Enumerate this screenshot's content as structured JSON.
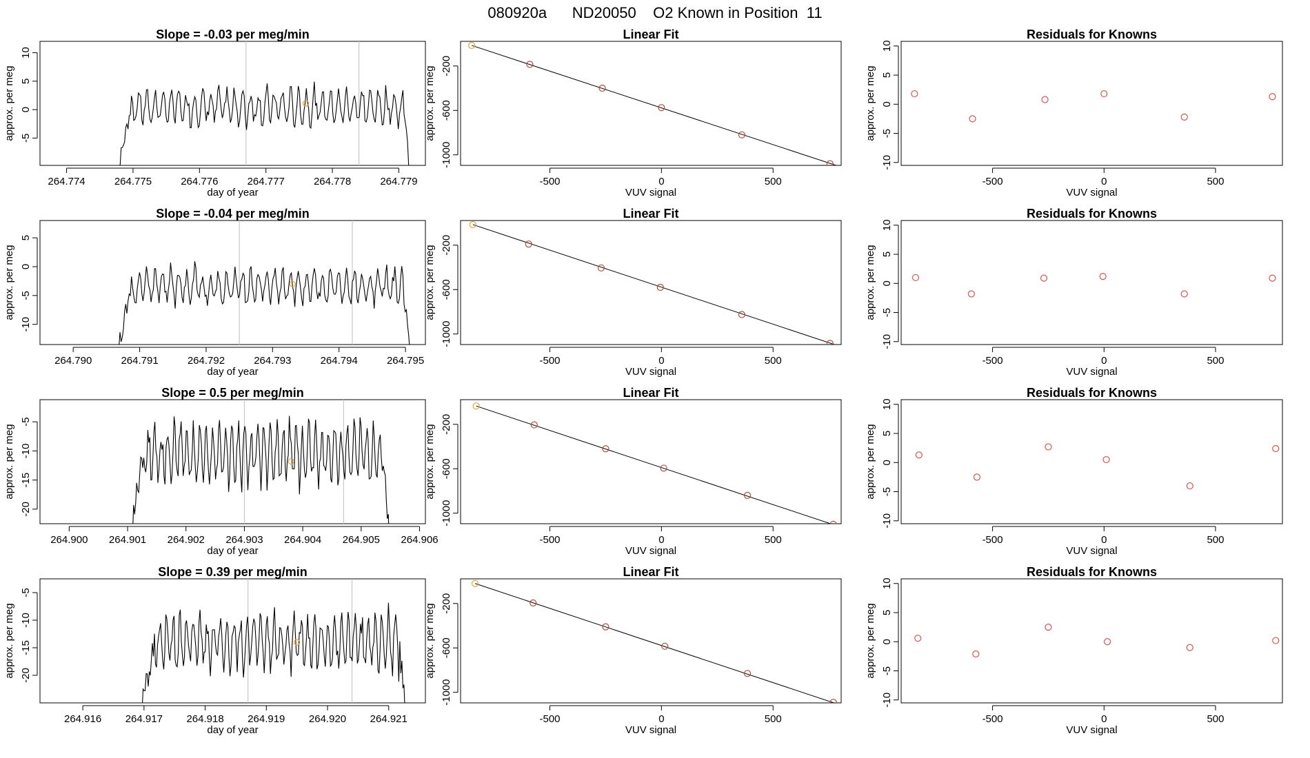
{
  "page_title": "080920a      ND20050    O2 Known in Position  11",
  "colors": {
    "trace": "#000000",
    "known_point": "#e8a33a",
    "residual_point": "#d9534f",
    "fit_point": "#b04a3a",
    "guide_line": "#c8c8c8",
    "frame": "#000000"
  },
  "chart_data": [
    {
      "type": "line",
      "row": 0,
      "col": 0,
      "title": "Slope =  -0.03  per meg/min",
      "xlabel": "day of year",
      "ylabel": "approx. per meg",
      "xlim": [
        264.7736,
        264.7794
      ],
      "ylim": [
        -9.8,
        12
      ],
      "xticks": [
        264.774,
        264.775,
        264.776,
        264.777,
        264.778,
        264.779
      ],
      "xtick_labels": [
        "264.774",
        "264.775",
        "264.776",
        "264.777",
        "264.778",
        "264.779"
      ],
      "yticks": [
        -5,
        0,
        5,
        10
      ],
      "ytick_labels": [
        "-5",
        "0",
        "5",
        "10"
      ],
      "trace_x_range": [
        264.7747,
        264.7792
      ],
      "trace_mean": 0.5,
      "trace_amplitude": 3.2,
      "trace_period": 0.00012,
      "vlines": [
        264.7767,
        264.7784
      ],
      "known_point": {
        "x": 264.7776,
        "y": 1.1
      }
    },
    {
      "type": "line",
      "row": 1,
      "col": 0,
      "title": "Slope =  -0.04  per meg/min",
      "xlabel": "day of year",
      "ylabel": "approx. per meg",
      "xlim": [
        264.7895,
        264.7953
      ],
      "ylim": [
        -13.5,
        8
      ],
      "xticks": [
        264.79,
        264.791,
        264.792,
        264.793,
        264.794,
        264.795
      ],
      "xtick_labels": [
        "264.790",
        "264.791",
        "264.792",
        "264.793",
        "264.794",
        "264.795"
      ],
      "yticks": [
        -10,
        -5,
        0,
        5
      ],
      "ytick_labels": [
        "-10",
        "-5",
        "0",
        "5"
      ],
      "trace_x_range": [
        264.7906,
        264.7951
      ],
      "trace_mean": -3.5,
      "trace_amplitude": 3.0,
      "trace_period": 0.00012,
      "vlines": [
        264.7925,
        264.7942
      ],
      "known_point": {
        "x": 264.7933,
        "y": -3.0
      }
    },
    {
      "type": "line",
      "row": 2,
      "col": 0,
      "title": "Slope =  0.5  per meg/min",
      "xlabel": "day of year",
      "ylabel": "approx. per meg",
      "xlim": [
        264.8995,
        264.9061
      ],
      "ylim": [
        -22.5,
        -1.2
      ],
      "xticks": [
        264.9,
        264.901,
        264.902,
        264.903,
        264.904,
        264.905,
        264.906
      ],
      "xtick_labels": [
        "264.900",
        "264.901",
        "264.902",
        "264.903",
        "264.904",
        "264.905",
        "264.906"
      ],
      "yticks": [
        -20,
        -15,
        -10,
        -5
      ],
      "ytick_labels": [
        "-20",
        "-15",
        "-10",
        "-5"
      ],
      "trace_x_range": [
        264.901,
        264.9055
      ],
      "trace_mean": -10.5,
      "trace_amplitude": 5.0,
      "trace_period": 0.00011,
      "vlines": [
        264.903,
        264.9047
      ],
      "known_point": {
        "x": 264.9038,
        "y": -11.8
      }
    },
    {
      "type": "line",
      "row": 3,
      "col": 0,
      "title": "Slope =  0.39  per meg/min",
      "xlabel": "day of year",
      "ylabel": "approx. per meg",
      "xlim": [
        264.9153,
        264.9216
      ],
      "ylim": [
        -25,
        -2.5
      ],
      "xticks": [
        264.916,
        264.917,
        264.918,
        264.919,
        264.92,
        264.921
      ],
      "xtick_labels": [
        "264.916",
        "264.917",
        "264.918",
        "264.919",
        "264.920",
        "264.921"
      ],
      "yticks": [
        -20,
        -15,
        -10,
        -5
      ],
      "ytick_labels": [
        "-20",
        "-15",
        "-10",
        "-5"
      ],
      "trace_x_range": [
        264.9169,
        264.9213
      ],
      "trace_mean": -14.0,
      "trace_amplitude": 5.0,
      "trace_period": 0.00011,
      "vlines": [
        264.9187,
        264.9204
      ],
      "known_point": {
        "x": 264.9195,
        "y": -14.0
      }
    },
    {
      "type": "scatter",
      "row": 0,
      "col": 1,
      "title": "Linear Fit",
      "xlabel": "VUV signal",
      "ylabel": "approx. per meg",
      "xlim": [
        -900,
        805
      ],
      "ylim": [
        -1095,
        22
      ],
      "xticks": [
        -500,
        0,
        500
      ],
      "xtick_labels": [
        "-500",
        "0",
        "500"
      ],
      "yticks": [
        -200,
        -600,
        -1000
      ],
      "ytick_labels": [
        "-200",
        "-600",
        "-1000"
      ],
      "points_x": [
        -850,
        -590,
        -265,
        0,
        360,
        755
      ],
      "points_y": [
        -15,
        -185,
        -400,
        -575,
        -820,
        -1080
      ],
      "fit_line": {
        "x": [
          -850,
          790
        ],
        "y": [
          -15,
          -1100
        ]
      }
    },
    {
      "type": "scatter",
      "row": 1,
      "col": 1,
      "title": "Linear Fit",
      "xlabel": "VUV signal",
      "ylabel": "approx. per meg",
      "xlim": [
        -900,
        805
      ],
      "ylim": [
        -1095,
        22
      ],
      "xticks": [
        -500,
        0,
        500
      ],
      "xtick_labels": [
        "-500",
        "0",
        "500"
      ],
      "yticks": [
        -200,
        -600,
        -1000
      ],
      "ytick_labels": [
        "-200",
        "-600",
        "-1000"
      ],
      "points_x": [
        -845,
        -595,
        -270,
        -5,
        360,
        755
      ],
      "points_y": [
        -15,
        -190,
        -405,
        -580,
        -825,
        -1085
      ],
      "fit_line": {
        "x": [
          -845,
          790
        ],
        "y": [
          -15,
          -1105
        ]
      }
    },
    {
      "type": "scatter",
      "row": 2,
      "col": 1,
      "title": "Linear Fit",
      "xlabel": "VUV signal",
      "ylabel": "approx. per meg",
      "xlim": [
        -900,
        805
      ],
      "ylim": [
        -1095,
        22
      ],
      "xticks": [
        -500,
        0,
        500
      ],
      "xtick_labels": [
        "-500",
        "0",
        "500"
      ],
      "points_x": [
        -830,
        -570,
        -250,
        10,
        385,
        770
      ],
      "points_y": [
        -35,
        -205,
        -420,
        -595,
        -840,
        -1100
      ],
      "yticks": [
        -200,
        -600,
        -1000
      ],
      "ytick_labels": [
        "-200",
        "-600",
        "-1000"
      ],
      "fit_line": {
        "x": [
          -830,
          780
        ],
        "y": [
          -35,
          -1110
        ]
      }
    },
    {
      "type": "scatter",
      "row": 3,
      "col": 1,
      "title": "Linear Fit",
      "xlabel": "VUV signal",
      "ylabel": "approx. per meg",
      "xlim": [
        -900,
        805
      ],
      "ylim": [
        -1095,
        22
      ],
      "xticks": [
        -500,
        0,
        500
      ],
      "xtick_labels": [
        "-500",
        "0",
        "500"
      ],
      "yticks": [
        -200,
        -600,
        -1000
      ],
      "ytick_labels": [
        "-200",
        "-600",
        "-1000"
      ],
      "points_x": [
        -835,
        -575,
        -250,
        15,
        385,
        770
      ],
      "points_y": [
        -20,
        -195,
        -410,
        -585,
        -830,
        -1090
      ],
      "fit_line": {
        "x": [
          -835,
          780
        ],
        "y": [
          -20,
          -1100
        ]
      }
    },
    {
      "type": "scatter",
      "row": 0,
      "col": 2,
      "title": "Residuals for Knowns",
      "xlabel": "VUV signal",
      "ylabel": "approx. per meg",
      "xlim": [
        -910,
        800
      ],
      "ylim": [
        -10.5,
        10.8
      ],
      "xticks": [
        -500,
        0,
        500
      ],
      "xtick_labels": [
        "-500",
        "0",
        "500"
      ],
      "yticks": [
        -10,
        -5,
        0,
        5,
        10
      ],
      "ytick_labels": [
        "-10",
        "-5",
        "0",
        "5",
        "10"
      ],
      "points_x": [
        -850,
        -590,
        -265,
        0,
        360,
        755
      ],
      "points_y": [
        1.8,
        -2.5,
        0.8,
        1.8,
        -2.2,
        1.3
      ]
    },
    {
      "type": "scatter",
      "row": 1,
      "col": 2,
      "title": "Residuals for Knowns",
      "xlabel": "VUV signal",
      "ylabel": "approx. per meg",
      "xlim": [
        -910,
        800
      ],
      "ylim": [
        -10.5,
        10.8
      ],
      "xticks": [
        -500,
        0,
        500
      ],
      "xtick_labels": [
        "-500",
        "0",
        "500"
      ],
      "yticks": [
        -10,
        -5,
        0,
        5,
        10
      ],
      "ytick_labels": [
        "-10",
        "-5",
        "0",
        "5",
        "10"
      ],
      "points_x": [
        -845,
        -595,
        -270,
        -5,
        360,
        755
      ],
      "points_y": [
        1.0,
        -1.8,
        0.9,
        1.2,
        -1.8,
        0.9
      ]
    },
    {
      "type": "scatter",
      "row": 2,
      "col": 2,
      "title": "Residuals for Knowns",
      "xlabel": "VUV signal",
      "ylabel": "approx. per meg",
      "xlim": [
        -910,
        800
      ],
      "ylim": [
        -10.5,
        10.8
      ],
      "xticks": [
        -500,
        0,
        500
      ],
      "xtick_labels": [
        "-500",
        "0",
        "500"
      ],
      "yticks": [
        -10,
        -5,
        0,
        5,
        10
      ],
      "ytick_labels": [
        "-10",
        "-5",
        "0",
        "5",
        "10"
      ],
      "points_x": [
        -830,
        -570,
        -250,
        10,
        385,
        770
      ],
      "points_y": [
        1.3,
        -2.5,
        2.7,
        0.5,
        -4.0,
        2.4
      ]
    },
    {
      "type": "scatter",
      "row": 3,
      "col": 2,
      "title": "Residuals for Knowns",
      "xlabel": "VUV signal",
      "ylabel": "approx. per meg",
      "xlim": [
        -910,
        800
      ],
      "ylim": [
        -10.5,
        10.8
      ],
      "xticks": [
        -500,
        0,
        500
      ],
      "xtick_labels": [
        "-500",
        "0",
        "500"
      ],
      "yticks": [
        -10,
        -5,
        0,
        5,
        10
      ],
      "ytick_labels": [
        "-10",
        "-5",
        "0",
        "5",
        "10"
      ],
      "points_x": [
        -835,
        -575,
        -250,
        15,
        385,
        770
      ],
      "points_y": [
        0.6,
        -2.1,
        2.5,
        0.0,
        -1.0,
        0.2
      ]
    }
  ]
}
